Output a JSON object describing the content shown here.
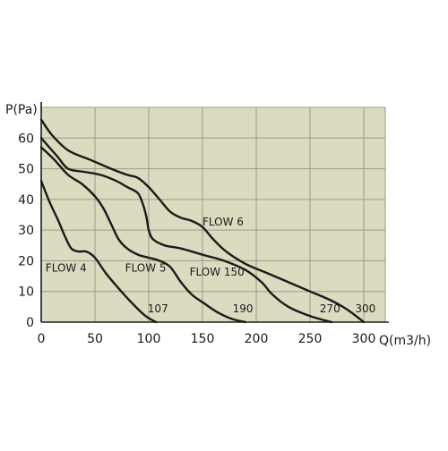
{
  "colors": {
    "plot_background": "#dbdcbf",
    "grid": "#9a9a88",
    "axis": "#1a1a1a",
    "curve": "#1a1a1a"
  },
  "chart_data": {
    "type": "line",
    "xlabel": "Q(m3/h)",
    "ylabel": "P(Pa)",
    "xlim": [
      0,
      320
    ],
    "ylim": [
      0,
      70
    ],
    "x_ticks": [
      0,
      50,
      100,
      150,
      200,
      250,
      300
    ],
    "y_ticks": [
      0,
      10,
      20,
      30,
      40,
      50,
      60
    ],
    "grid": true,
    "legend": "none",
    "series": [
      {
        "name": "FLOW 4",
        "points": [
          [
            0,
            46
          ],
          [
            8,
            39
          ],
          [
            16,
            33
          ],
          [
            22,
            28
          ],
          [
            28,
            24
          ],
          [
            35,
            23
          ],
          [
            42,
            23
          ],
          [
            50,
            21
          ],
          [
            60,
            16
          ],
          [
            72,
            11
          ],
          [
            85,
            6
          ],
          [
            97,
            2
          ],
          [
            107,
            0
          ]
        ]
      },
      {
        "name": "FLOW 5",
        "points": [
          [
            0,
            57
          ],
          [
            12,
            53
          ],
          [
            25,
            48
          ],
          [
            38,
            45
          ],
          [
            50,
            41
          ],
          [
            58,
            37
          ],
          [
            65,
            32
          ],
          [
            72,
            27
          ],
          [
            80,
            24
          ],
          [
            90,
            22
          ],
          [
            100,
            21
          ],
          [
            110,
            20
          ],
          [
            120,
            18
          ],
          [
            130,
            13
          ],
          [
            140,
            9
          ],
          [
            152,
            6
          ],
          [
            165,
            3
          ],
          [
            178,
            1
          ],
          [
            190,
            0
          ]
        ]
      },
      {
        "name": "FLOW 150",
        "points": [
          [
            0,
            60
          ],
          [
            15,
            54
          ],
          [
            25,
            50
          ],
          [
            40,
            49
          ],
          [
            55,
            48
          ],
          [
            70,
            46
          ],
          [
            80,
            44
          ],
          [
            90,
            42
          ],
          [
            95,
            38
          ],
          [
            98,
            34
          ],
          [
            100,
            30
          ],
          [
            104,
            27
          ],
          [
            115,
            25
          ],
          [
            130,
            24
          ],
          [
            150,
            22
          ],
          [
            170,
            20
          ],
          [
            190,
            17
          ],
          [
            205,
            13
          ],
          [
            215,
            9
          ],
          [
            230,
            5
          ],
          [
            250,
            2
          ],
          [
            270,
            0
          ]
        ]
      },
      {
        "name": "FLOW 6",
        "points": [
          [
            0,
            66
          ],
          [
            10,
            61
          ],
          [
            25,
            56
          ],
          [
            45,
            53
          ],
          [
            65,
            50
          ],
          [
            80,
            48
          ],
          [
            90,
            47
          ],
          [
            100,
            44
          ],
          [
            110,
            40
          ],
          [
            120,
            36
          ],
          [
            130,
            34
          ],
          [
            140,
            33
          ],
          [
            150,
            31
          ],
          [
            160,
            27
          ],
          [
            172,
            23
          ],
          [
            190,
            19
          ],
          [
            210,
            16
          ],
          [
            230,
            13
          ],
          [
            250,
            10
          ],
          [
            270,
            7
          ],
          [
            285,
            4
          ],
          [
            300,
            0
          ]
        ]
      }
    ],
    "annotations": [
      {
        "text": "FLOW 4",
        "x": 4,
        "y": 16.5
      },
      {
        "text": "FLOW 5",
        "x": 78,
        "y": 16.5
      },
      {
        "text": "FLOW 150",
        "x": 138,
        "y": 15.2
      },
      {
        "text": "FLOW 6",
        "x": 150,
        "y": 31.5
      },
      {
        "text": "107",
        "x": 99,
        "y": 3.2
      },
      {
        "text": "190",
        "x": 178,
        "y": 3.2
      },
      {
        "text": "270",
        "x": 259,
        "y": 3.2
      },
      {
        "text": "300",
        "x": 292,
        "y": 3.2
      }
    ]
  }
}
